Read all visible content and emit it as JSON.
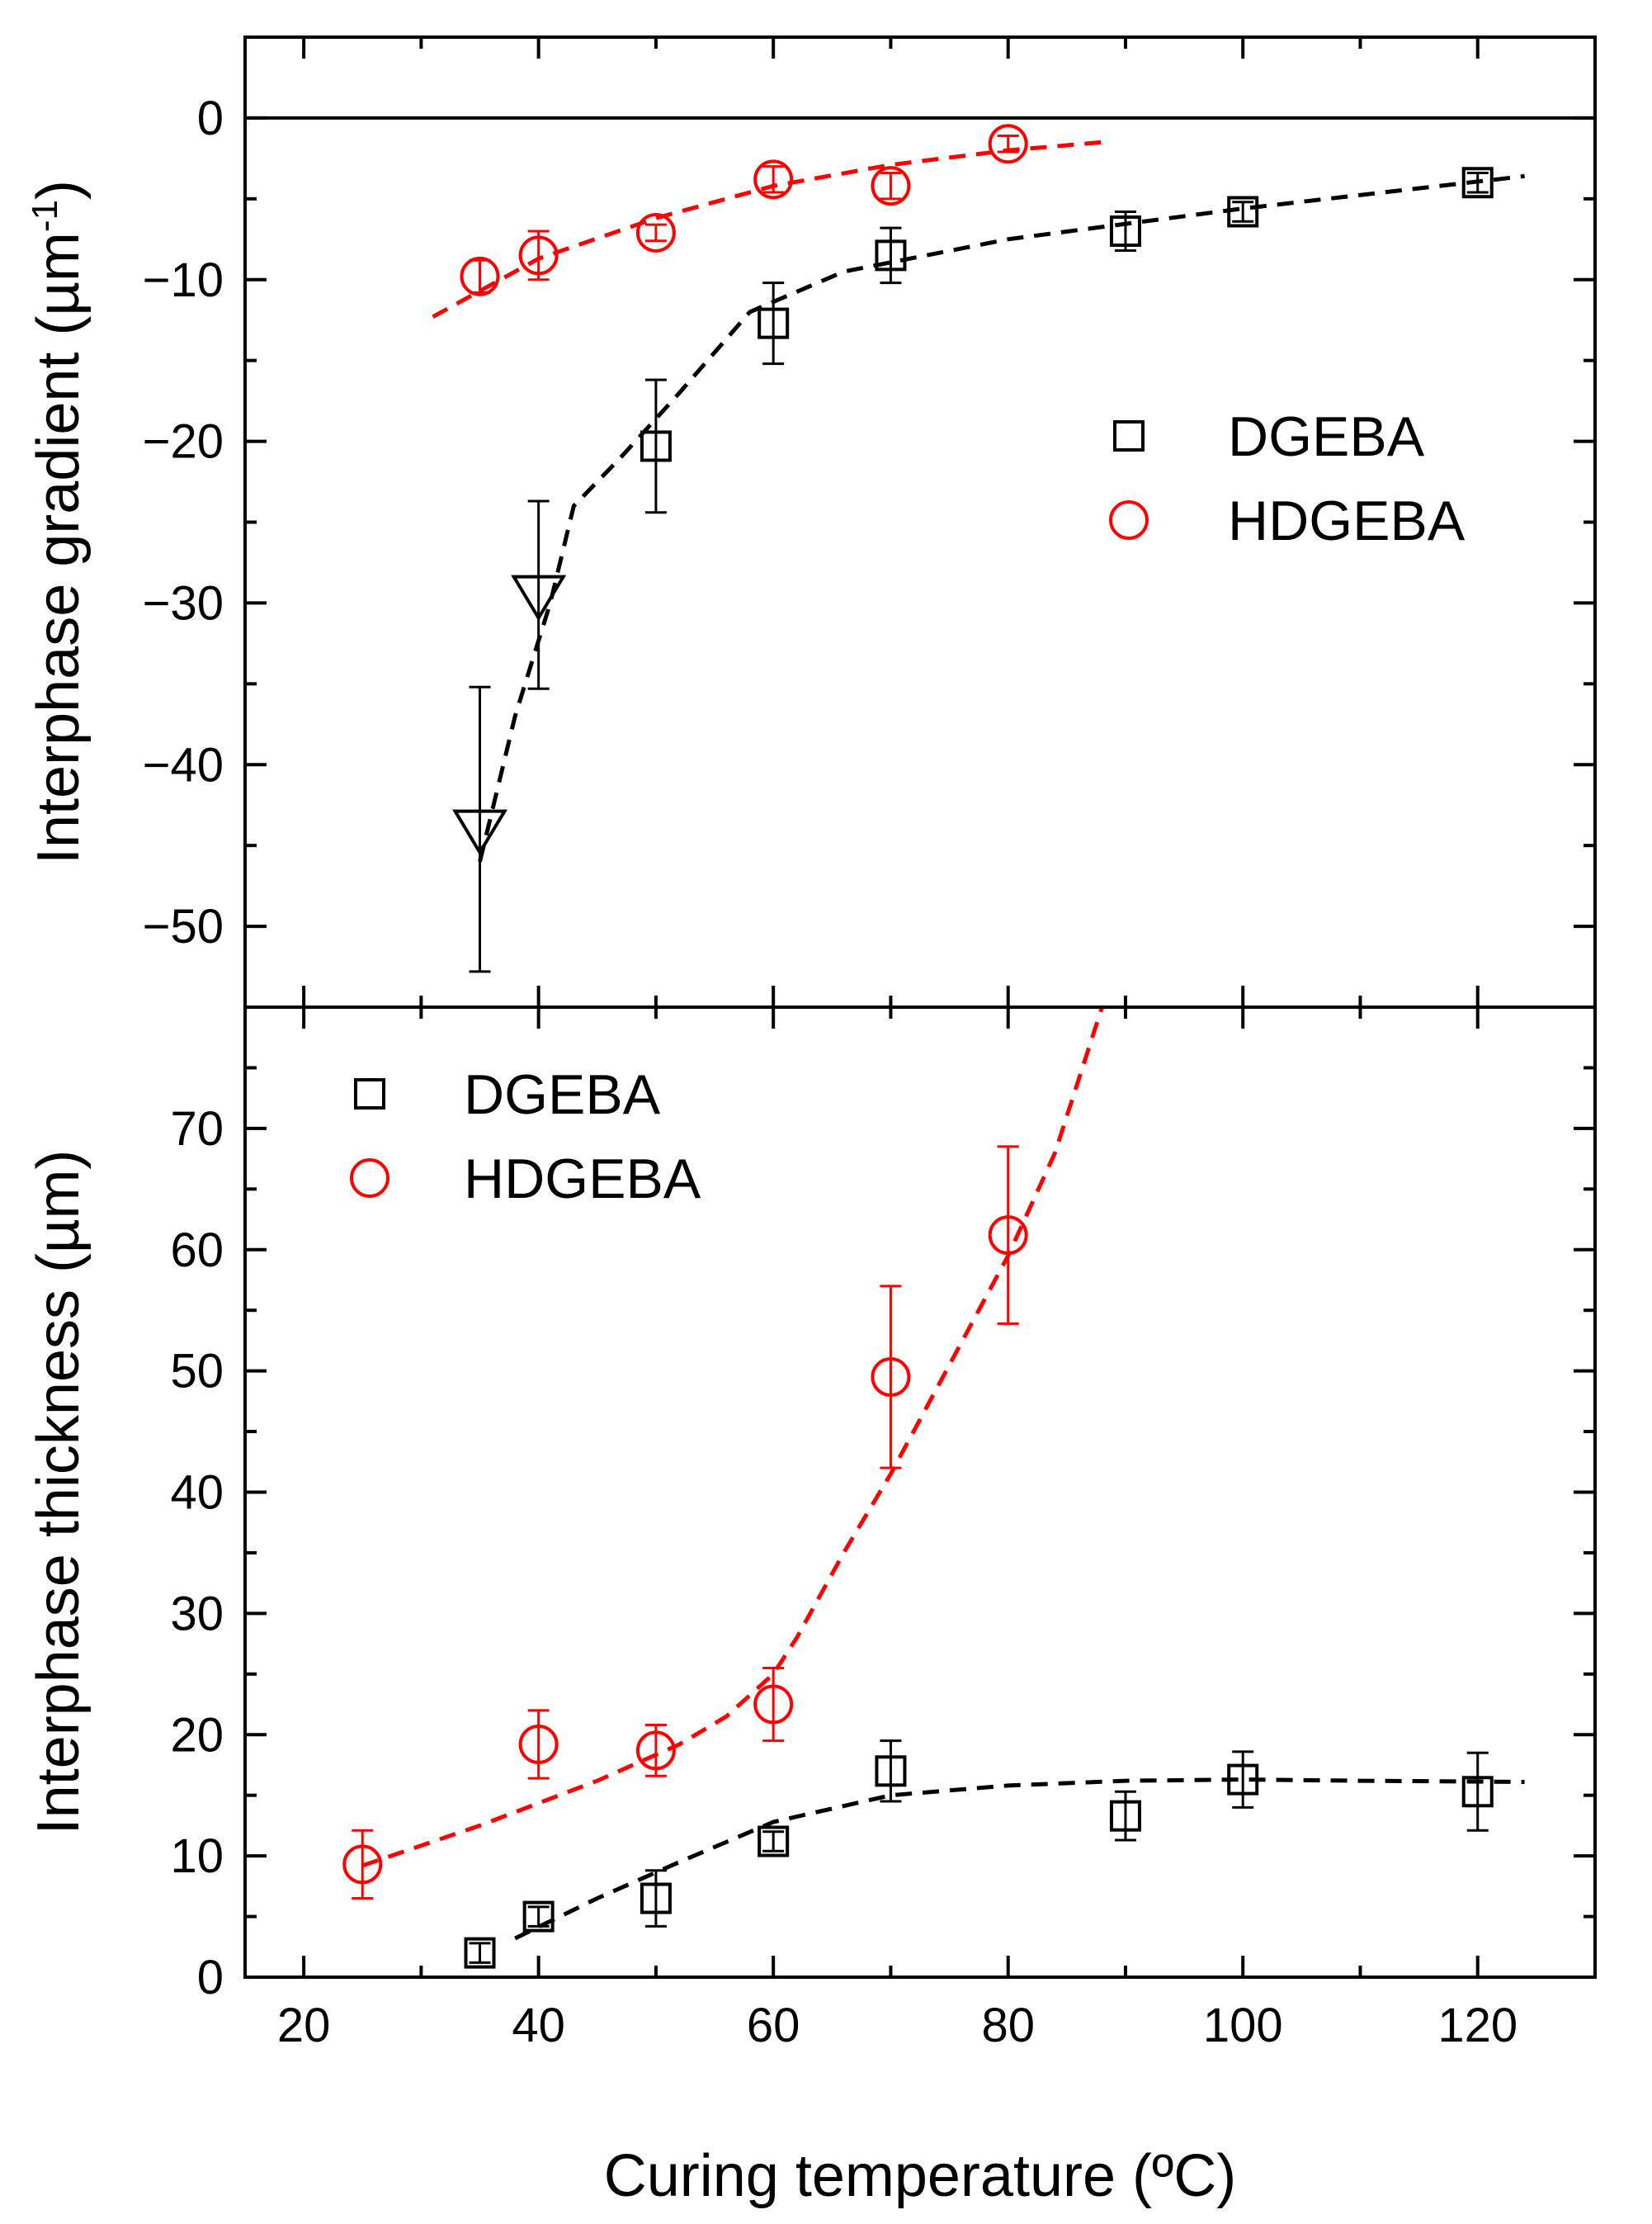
{
  "chart_data": [
    {
      "type": "scatter",
      "panel": "top",
      "ylabel": "Interphase gradient (µm",
      "ylabel_sup": "-1",
      "ylabel_close": ")",
      "ylim": [
        -55,
        5
      ],
      "xlim": [
        15,
        130
      ],
      "yticks": [
        -50,
        -40,
        -30,
        -20,
        -10,
        0
      ],
      "ytick_labels": [
        "−50",
        "−40",
        "−30",
        "−20",
        "−10",
        "0"
      ],
      "reference_line": 0,
      "legend": [
        {
          "label": "DGEBA",
          "marker": "square",
          "color": "#000000"
        },
        {
          "label": "HDGEBA",
          "marker": "circle",
          "color": "#ff0000"
        }
      ],
      "series": [
        {
          "name": "DGEBA",
          "marker": "square",
          "color": "#000000",
          "points": [
            {
              "x": 50,
              "y": -20.3,
              "err_lo": 4.1,
              "err_hi": 4.1
            },
            {
              "x": 60,
              "y": -12.7,
              "err_lo": 2.5,
              "err_hi": 2.5
            },
            {
              "x": 70,
              "y": -8.5,
              "err_lo": 1.7,
              "err_hi": 1.7
            },
            {
              "x": 90,
              "y": -7.0,
              "err_lo": 1.2,
              "err_hi": 1.2
            },
            {
              "x": 100,
              "y": -5.8,
              "err_lo": 0.6,
              "err_hi": 0.6
            },
            {
              "x": 120,
              "y": -4.0,
              "err_lo": 0.6,
              "err_hi": 0.6
            }
          ]
        },
        {
          "name": "DGEBA (triangle)",
          "marker": "triangle-down",
          "color": "#000000",
          "points": [
            {
              "x": 35,
              "y": -44.0,
              "err_lo": 8.8,
              "err_hi": 8.8
            },
            {
              "x": 40,
              "y": -29.5,
              "err_lo": 5.8,
              "err_hi": 5.8
            }
          ]
        },
        {
          "name": "HDGEBA",
          "marker": "circle",
          "color": "#ff0000",
          "points": [
            {
              "x": 35,
              "y": -9.8,
              "err_lo": 1.0,
              "err_hi": 1.0
            },
            {
              "x": 40,
              "y": -8.5,
              "err_lo": 1.5,
              "err_hi": 1.5
            },
            {
              "x": 50,
              "y": -7.1,
              "err_lo": 0.5,
              "err_hi": 0.5
            },
            {
              "x": 60,
              "y": -3.8,
              "err_lo": 0.8,
              "err_hi": 0.8
            },
            {
              "x": 70,
              "y": -4.2,
              "err_lo": 0.8,
              "err_hi": 0.8
            },
            {
              "x": 80,
              "y": -1.6,
              "err_lo": 0.5,
              "err_hi": 0.5
            }
          ]
        }
      ],
      "fits": [
        {
          "color": "#000000",
          "x": [
            35,
            38,
            41,
            43,
            47,
            52,
            58,
            66,
            80,
            100,
            124
          ],
          "y": [
            -46,
            -37,
            -30,
            -24,
            -21,
            -17,
            -12,
            -9.5,
            -7.5,
            -5.6,
            -3.6
          ]
        },
        {
          "color": "#ff0000",
          "x": [
            31,
            40,
            50,
            60,
            70,
            80,
            88
          ],
          "y": [
            -12.3,
            -8.7,
            -6.2,
            -4.2,
            -2.9,
            -2.0,
            -1.5
          ]
        }
      ]
    },
    {
      "type": "scatter",
      "panel": "bottom",
      "xlabel": "Curing temperature (ºC)",
      "ylabel": "Interphase thickness (µm)",
      "xlim": [
        15,
        130
      ],
      "ylim": [
        0,
        80
      ],
      "xticks": [
        20,
        40,
        60,
        80,
        100,
        120
      ],
      "xtick_labels": [
        "20",
        "40",
        "60",
        "80",
        "100",
        "120"
      ],
      "yticks": [
        0,
        10,
        20,
        30,
        40,
        50,
        60,
        70
      ],
      "ytick_labels": [
        "0",
        "10",
        "20",
        "30",
        "40",
        "50",
        "60",
        "70"
      ],
      "legend": [
        {
          "label": "DGEBA",
          "marker": "square",
          "color": "#000000"
        },
        {
          "label": "HDGEBA",
          "marker": "circle",
          "color": "#ff0000"
        }
      ],
      "series": [
        {
          "name": "DGEBA",
          "marker": "square",
          "color": "#000000",
          "points": [
            {
              "x": 35,
              "y": 2.0,
              "err_lo": 0.8,
              "err_hi": 0.8
            },
            {
              "x": 40,
              "y": 5.0,
              "err_lo": 0.8,
              "err_hi": 0.8
            },
            {
              "x": 50,
              "y": 6.5,
              "err_lo": 2.3,
              "err_hi": 2.3
            },
            {
              "x": 60,
              "y": 11.2,
              "err_lo": 0.8,
              "err_hi": 0.8
            },
            {
              "x": 70,
              "y": 17.0,
              "err_lo": 2.5,
              "err_hi": 2.5
            },
            {
              "x": 90,
              "y": 13.3,
              "err_lo": 2.0,
              "err_hi": 2.0
            },
            {
              "x": 100,
              "y": 16.3,
              "err_lo": 2.3,
              "err_hi": 2.3
            },
            {
              "x": 120,
              "y": 15.3,
              "err_lo": 3.2,
              "err_hi": 3.2
            }
          ]
        },
        {
          "name": "HDGEBA",
          "marker": "circle",
          "color": "#ff0000",
          "points": [
            {
              "x": 25,
              "y": 9.3,
              "err_lo": 2.8,
              "err_hi": 2.8
            },
            {
              "x": 40,
              "y": 19.2,
              "err_lo": 2.8,
              "err_hi": 2.8
            },
            {
              "x": 50,
              "y": 18.7,
              "err_lo": 2.1,
              "err_hi": 2.1
            },
            {
              "x": 60,
              "y": 22.5,
              "err_lo": 3.0,
              "err_hi": 3.0
            },
            {
              "x": 70,
              "y": 49.5,
              "err_lo": 7.5,
              "err_hi": 7.5
            },
            {
              "x": 80,
              "y": 61.2,
              "err_lo": 7.3,
              "err_hi": 7.3
            }
          ]
        }
      ],
      "fits": [
        {
          "color": "#000000",
          "x": [
            38,
            45,
            52,
            60,
            70,
            80,
            90,
            100,
            110,
            124
          ],
          "y": [
            3.2,
            6.5,
            9.5,
            12.8,
            15.0,
            15.8,
            16.2,
            16.3,
            16.2,
            16.1
          ]
        },
        {
          "color": "#ff0000",
          "x": [
            25,
            35,
            45,
            52,
            56,
            60,
            62,
            66,
            70,
            75,
            80,
            84,
            88
          ],
          "y": [
            9.2,
            12.5,
            16.2,
            19.2,
            21.5,
            25.0,
            28.0,
            35.0,
            41.5,
            50.5,
            59.5,
            68.0,
            80.0
          ]
        }
      ]
    }
  ]
}
